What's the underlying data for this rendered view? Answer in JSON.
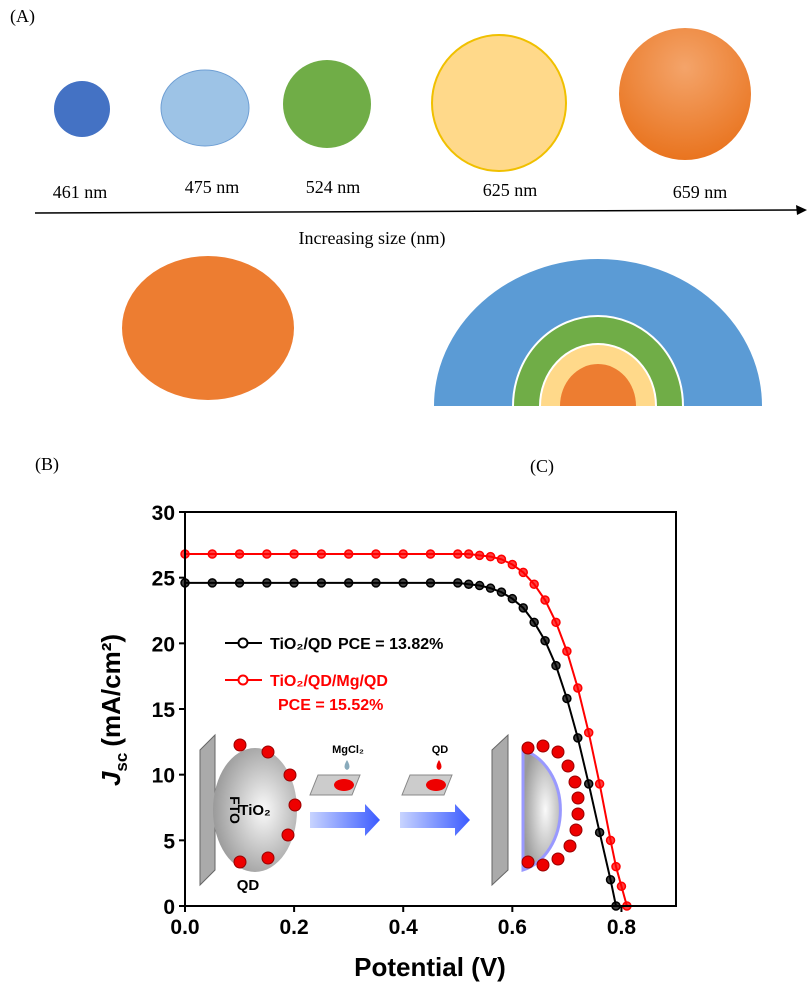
{
  "panel_a": {
    "label": "(A)",
    "sizes": [
      "461 nm",
      "475 nm",
      "524 nm",
      "625 nm",
      "659 nm"
    ],
    "axis_label": "Increasing size (nm)"
  },
  "panel_b_label": "(B)",
  "panel_c_label": "(C)",
  "chart_data": {
    "type": "line",
    "xlabel": "Potential (V)",
    "ylabel": {
      "symbol": "J",
      "subscript": "sc",
      "unit": "(mA/cm²)"
    },
    "x": [
      0,
      0.05,
      0.1,
      0.15,
      0.2,
      0.25,
      0.3,
      0.35,
      0.4,
      0.45,
      0.5,
      0.52,
      0.54,
      0.56,
      0.58,
      0.6,
      0.62,
      0.64,
      0.66,
      0.68,
      0.7,
      0.72,
      0.74,
      0.76,
      0.78,
      0.79,
      0.8,
      0.81
    ],
    "series": [
      {
        "name": "TiO₂/QD",
        "annotation": "PCE = 13.82%",
        "color": "#000000",
        "values": [
          24.6,
          24.6,
          24.6,
          24.6,
          24.6,
          24.6,
          24.6,
          24.6,
          24.6,
          24.6,
          24.6,
          24.5,
          24.4,
          24.2,
          23.9,
          23.4,
          22.7,
          21.6,
          20.2,
          18.3,
          15.8,
          12.8,
          9.3,
          5.6,
          2.0,
          0,
          null,
          null
        ]
      },
      {
        "name": "TiO₂/QD/Mg/QD",
        "annotation": "PCE = 15.52%",
        "color": "#ff0000",
        "values": [
          26.8,
          26.8,
          26.8,
          26.8,
          26.8,
          26.8,
          26.8,
          26.8,
          26.8,
          26.8,
          26.8,
          26.8,
          26.7,
          26.6,
          26.4,
          26.0,
          25.4,
          24.5,
          23.3,
          21.6,
          19.4,
          16.6,
          13.2,
          9.3,
          5.0,
          3.0,
          1.5,
          0
        ]
      }
    ],
    "xlim": [
      0,
      0.9
    ],
    "xticks": [
      {
        "value": 0,
        "label": "0.0"
      },
      0.2,
      0.4,
      0.6,
      0.8
    ],
    "ylim": [
      0,
      30
    ],
    "yticks": [
      0,
      5,
      10,
      15,
      20,
      25,
      30
    ],
    "inset": {
      "electrode": "FTO",
      "particle": "TiO₂",
      "dot": "QD",
      "step1": "MgCl₂",
      "step2": "QD"
    }
  }
}
